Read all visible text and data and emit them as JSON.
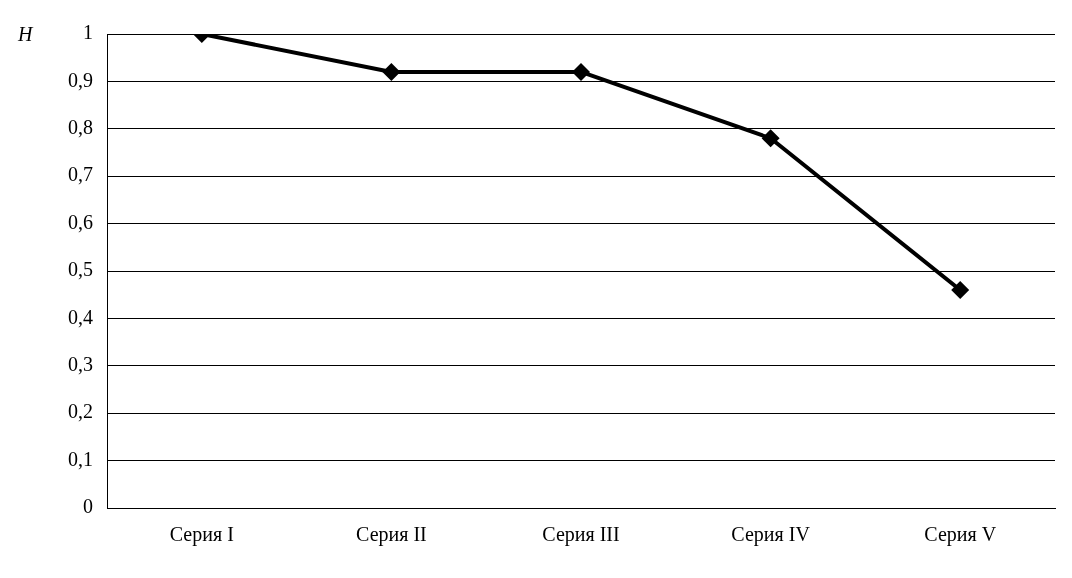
{
  "chart_data": {
    "type": "line",
    "ylabel": "H",
    "categories": [
      "Серия I",
      "Серия II",
      "Серия III",
      "Серия IV",
      "Серия V"
    ],
    "series": [
      {
        "color": "#000000",
        "values": [
          1,
          0.92,
          0.92,
          0.78,
          0.46
        ]
      }
    ],
    "ylim": [
      0,
      1
    ],
    "yticks": [
      0,
      {
        "value": 0.1,
        "label": "0,1"
      },
      {
        "value": 0.2,
        "label": "0,2"
      },
      {
        "value": 0.3,
        "label": "0,3"
      },
      {
        "value": 0.4,
        "label": "0,4"
      },
      {
        "value": 0.5,
        "label": "0,5"
      },
      {
        "value": 0.6,
        "label": "0,6"
      },
      {
        "value": 0.7,
        "label": "0,7"
      },
      {
        "value": 0.8,
        "label": "0,8"
      },
      {
        "value": 0.9,
        "label": "0,9"
      },
      1
    ],
    "grid": "y",
    "marker": "diamond",
    "line_style": "solid",
    "legend": false
  }
}
